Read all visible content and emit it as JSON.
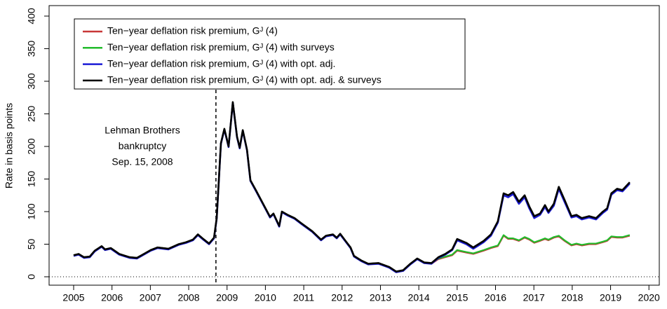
{
  "chart_data": {
    "type": "line",
    "y_label": "Rate in basis points",
    "xlim": [
      2004.36,
      2020.27
    ],
    "ylim": [
      -12.9,
      416.1
    ],
    "xticks": [
      2005,
      2006,
      2007,
      2008,
      2009,
      2010,
      2011,
      2012,
      2013,
      2014,
      2015,
      2016,
      2017,
      2018,
      2019,
      2020
    ],
    "yticks": [
      0,
      50,
      100,
      150,
      200,
      250,
      300,
      350,
      400
    ],
    "hline": 0,
    "legend": "top-left",
    "annotation": {
      "x": 2008.71,
      "lines": [
        "Lehman Brothers",
        "bankruptcy",
        "Sep. 15, 2008"
      ]
    },
    "x": [
      2005.0,
      2005.13,
      2005.27,
      2005.42,
      2005.55,
      2005.73,
      2005.82,
      2005.97,
      2006.19,
      2006.46,
      2006.65,
      2006.83,
      2007.01,
      2007.19,
      2007.47,
      2007.74,
      2007.93,
      2008.11,
      2008.24,
      2008.38,
      2008.53,
      2008.66,
      2008.73,
      2008.84,
      2008.93,
      2009.04,
      2009.15,
      2009.26,
      2009.33,
      2009.41,
      2009.52,
      2009.61,
      2009.75,
      2009.94,
      2010.12,
      2010.21,
      2010.36,
      2010.43,
      2010.58,
      2010.76,
      2010.94,
      2011.22,
      2011.45,
      2011.58,
      2011.76,
      2011.86,
      2011.95,
      2012.09,
      2012.22,
      2012.31,
      2012.5,
      2012.68,
      2012.95,
      2013.23,
      2013.41,
      2013.59,
      2013.78,
      2013.96,
      2014.14,
      2014.33,
      2014.51,
      2014.69,
      2014.87,
      2015.0,
      2015.24,
      2015.42,
      2015.69,
      2015.88,
      2016.06,
      2016.21,
      2016.33,
      2016.46,
      2016.61,
      2016.76,
      2016.88,
      2017.01,
      2017.16,
      2017.29,
      2017.38,
      2017.52,
      2017.65,
      2017.8,
      2017.98,
      2018.11,
      2018.25,
      2018.44,
      2018.62,
      2018.8,
      2018.91,
      2019.02,
      2019.17,
      2019.31,
      2019.5
    ],
    "series": [
      {
        "name": "Ten−year deflation risk premium, Gᴶ (4)",
        "color": "#c83737",
        "values": [
          33,
          35,
          30,
          31,
          40,
          47,
          42,
          44,
          35,
          30,
          29,
          35,
          41,
          45,
          43,
          50,
          53,
          57,
          65,
          58,
          51,
          60,
          90,
          205,
          227,
          200,
          268,
          215,
          198,
          225,
          195,
          148,
          133,
          112,
          92,
          97,
          78,
          100,
          95,
          90,
          82,
          70,
          57,
          63,
          65,
          60,
          66,
          55,
          45,
          32,
          25,
          20,
          21,
          15,
          8,
          10,
          20,
          28,
          22,
          20,
          27,
          30,
          33,
          40,
          37,
          35,
          40,
          44,
          47,
          63,
          58,
          58,
          55,
          60,
          57,
          52,
          55,
          58,
          56,
          60,
          62,
          55,
          48,
          50,
          48,
          50,
          50,
          53,
          55,
          61,
          60,
          60,
          63
        ]
      },
      {
        "name": "Ten−year deflation risk premium, Gᴶ (4) with surveys",
        "color": "#22bb2b",
        "values": [
          33,
          35,
          30,
          31,
          40,
          47,
          42,
          44,
          35,
          30,
          29,
          35,
          41,
          45,
          43,
          50,
          53,
          57,
          65,
          58,
          51,
          60,
          90,
          205,
          227,
          200,
          268,
          215,
          198,
          225,
          195,
          148,
          133,
          112,
          92,
          97,
          78,
          100,
          95,
          90,
          82,
          70,
          57,
          63,
          65,
          60,
          66,
          55,
          45,
          32,
          25,
          20,
          21,
          15,
          8,
          10,
          20,
          28,
          22,
          21,
          28,
          31,
          34,
          41,
          38,
          36,
          41,
          45,
          48,
          64,
          59,
          59,
          56,
          61,
          58,
          53,
          56,
          59,
          57,
          61,
          63,
          56,
          49,
          51,
          49,
          51,
          51,
          54,
          56,
          62,
          61,
          61,
          64
        ]
      },
      {
        "name": "Ten−year deflation risk premium, Gᴶ (4) with opt. adj.",
        "color": "#1c1cd6",
        "values": [
          32,
          34,
          29,
          30,
          39,
          46,
          41,
          43,
          34,
          29,
          28,
          34,
          40,
          44,
          42,
          49,
          52,
          56,
          64,
          57,
          50,
          59,
          89,
          204,
          226,
          199,
          267,
          214,
          197,
          224,
          194,
          147,
          132,
          111,
          91,
          96,
          77,
          99,
          94,
          89,
          81,
          69,
          56,
          62,
          64,
          59,
          65,
          54,
          44,
          31,
          24,
          19,
          20,
          14,
          7,
          9,
          19,
          27,
          21,
          20,
          29,
          34,
          41,
          56,
          50,
          43,
          53,
          63,
          83,
          125,
          122,
          127,
          112,
          122,
          105,
          90,
          95,
          107,
          98,
          109,
          135,
          115,
          91,
          93,
          88,
          91,
          88,
          98,
          103,
          126,
          133,
          131,
          143
        ]
      },
      {
        "name": "Ten−year deflation risk premium, Gᴶ (4) with opt. adj. & surveys",
        "color": "#000000",
        "values": [
          33,
          35,
          30,
          31,
          40,
          47,
          42,
          44,
          35,
          30,
          29,
          35,
          41,
          45,
          43,
          50,
          53,
          57,
          65,
          58,
          51,
          60,
          90,
          205,
          227,
          200,
          268,
          215,
          198,
          225,
          195,
          148,
          133,
          112,
          92,
          97,
          78,
          100,
          95,
          90,
          82,
          70,
          57,
          63,
          65,
          60,
          66,
          55,
          45,
          32,
          25,
          20,
          21,
          15,
          8,
          10,
          20,
          28,
          22,
          21,
          30,
          35,
          42,
          58,
          52,
          45,
          55,
          65,
          85,
          128,
          125,
          130,
          115,
          125,
          108,
          93,
          97,
          110,
          100,
          112,
          138,
          118,
          93,
          95,
          90,
          93,
          90,
          100,
          105,
          128,
          135,
          133,
          145
        ]
      }
    ]
  }
}
